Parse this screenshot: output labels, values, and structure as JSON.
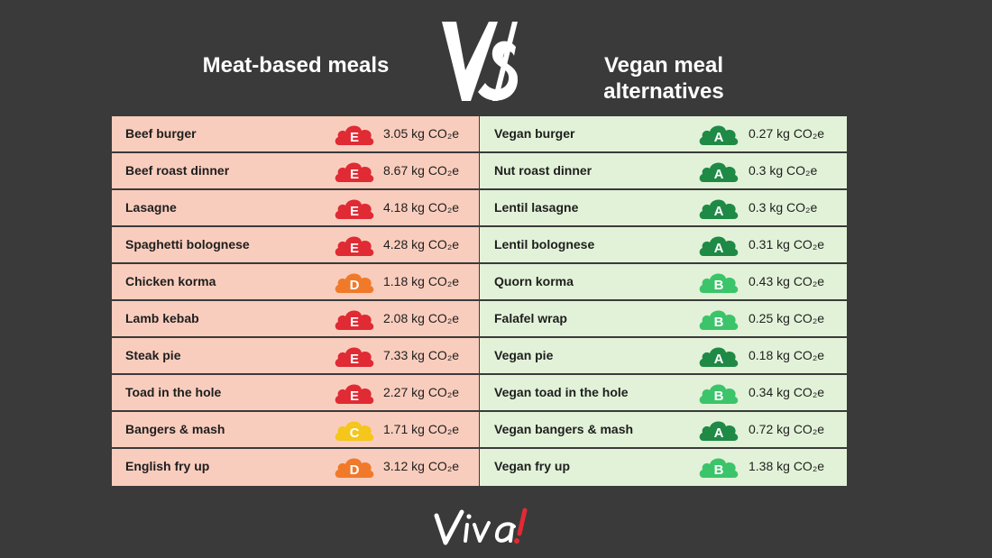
{
  "header": {
    "left_title": "Meat-based meals",
    "right_title": "Vegan meal alternatives",
    "vs_text": "VS"
  },
  "grade_colors": {
    "A": "#1e8a45",
    "B": "#3cc46a",
    "C": "#f5c61b",
    "D": "#f07a2a",
    "E": "#e02a34"
  },
  "meat_meals": [
    {
      "name": "Beef burger",
      "grade": "E",
      "emission": "3.05 kg CO₂e"
    },
    {
      "name": "Beef roast dinner",
      "grade": "E",
      "emission": "8.67 kg CO₂e"
    },
    {
      "name": "Lasagne",
      "grade": "E",
      "emission": "4.18 kg CO₂e"
    },
    {
      "name": "Spaghetti bolognese",
      "grade": "E",
      "emission": "4.28 kg CO₂e"
    },
    {
      "name": "Chicken korma",
      "grade": "D",
      "emission": "1.18 kg CO₂e"
    },
    {
      "name": "Lamb kebab",
      "grade": "E",
      "emission": "2.08 kg CO₂e"
    },
    {
      "name": "Steak pie",
      "grade": "E",
      "emission": "7.33 kg CO₂e"
    },
    {
      "name": "Toad in the hole",
      "grade": "E",
      "emission": "2.27 kg CO₂e"
    },
    {
      "name": "Bangers & mash",
      "grade": "C",
      "emission": "1.71 kg CO₂e"
    },
    {
      "name": "English fry up",
      "grade": "D",
      "emission": "3.12 kg CO₂e"
    }
  ],
  "vegan_meals": [
    {
      "name": "Vegan burger",
      "grade": "A",
      "emission": "0.27 kg CO₂e"
    },
    {
      "name": "Nut roast dinner",
      "grade": "A",
      "emission": "0.3 kg CO₂e"
    },
    {
      "name": "Lentil lasagne",
      "grade": "A",
      "emission": "0.3 kg CO₂e"
    },
    {
      "name": "Lentil bolognese",
      "grade": "A",
      "emission": "0.31 kg CO₂e"
    },
    {
      "name": "Quorn korma",
      "grade": "B",
      "emission": "0.43 kg CO₂e"
    },
    {
      "name": "Falafel wrap",
      "grade": "B",
      "emission": "0.25 kg CO₂e"
    },
    {
      "name": "Vegan pie",
      "grade": "A",
      "emission": "0.18 kg CO₂e"
    },
    {
      "name": "Vegan toad in the hole",
      "grade": "B",
      "emission": "0.34 kg CO₂e"
    },
    {
      "name": "Vegan bangers & mash",
      "grade": "A",
      "emission": "0.72 kg CO₂e"
    },
    {
      "name": "Vegan fry up",
      "grade": "B",
      "emission": "1.38 kg CO₂e"
    }
  ],
  "footer": {
    "logo_text": "Viva!"
  }
}
